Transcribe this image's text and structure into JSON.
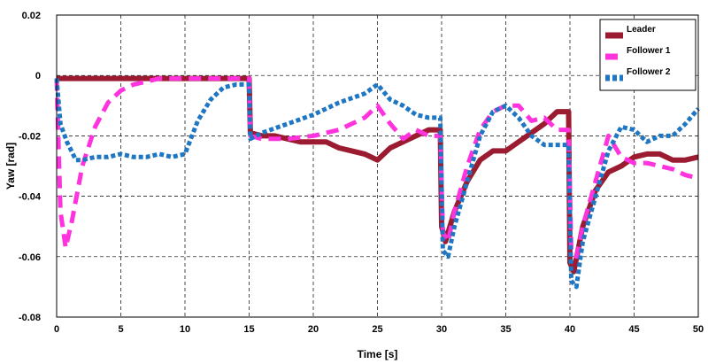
{
  "chart_data": {
    "type": "line",
    "xlabel": "Time [s]",
    "ylabel": "Yaw [rad]",
    "xlim": [
      0,
      50
    ],
    "ylim": [
      -0.08,
      0.02
    ],
    "xticks": [
      0,
      5,
      10,
      15,
      20,
      25,
      30,
      35,
      40,
      45,
      50
    ],
    "yticks": [
      0.02,
      0,
      -0.02,
      -0.04,
      -0.06,
      -0.08
    ],
    "ytick_labels": [
      "0.02",
      "0",
      "-0.02",
      "-0.04",
      "-0.06",
      "-0.08"
    ],
    "grid": true,
    "legend_position": "top-right",
    "series": [
      {
        "name": "Leader",
        "color": "#9b1b30",
        "style": "solid",
        "x": [
          0,
          2,
          5,
          10,
          15,
          15.1,
          16,
          17,
          18,
          19,
          20,
          21,
          22,
          23,
          24,
          25,
          26,
          27,
          28,
          29,
          29.9,
          30,
          30.3,
          31,
          32,
          33,
          34,
          35,
          36,
          37,
          38,
          39,
          39.9,
          40,
          40.3,
          41,
          42,
          43,
          44,
          45,
          46,
          47,
          48,
          49,
          50
        ],
        "y": [
          -0.001,
          -0.001,
          -0.001,
          -0.001,
          -0.001,
          -0.019,
          -0.02,
          -0.02,
          -0.021,
          -0.022,
          -0.022,
          -0.022,
          -0.024,
          -0.025,
          -0.026,
          -0.028,
          -0.024,
          -0.022,
          -0.02,
          -0.018,
          -0.018,
          -0.05,
          -0.055,
          -0.045,
          -0.035,
          -0.028,
          -0.025,
          -0.025,
          -0.022,
          -0.019,
          -0.016,
          -0.012,
          -0.012,
          -0.062,
          -0.065,
          -0.05,
          -0.038,
          -0.032,
          -0.03,
          -0.027,
          -0.026,
          -0.026,
          -0.028,
          -0.028,
          -0.027
        ]
      },
      {
        "name": "Follower 1",
        "color": "#ff33dd",
        "style": "dashed",
        "x": [
          0,
          0.3,
          0.7,
          1.2,
          2,
          3,
          4,
          5,
          6,
          7,
          8,
          10,
          12,
          15,
          15.1,
          16,
          18,
          20,
          22,
          24,
          25,
          26,
          27,
          28,
          29,
          29.9,
          30.1,
          30.5,
          31,
          32,
          33,
          34,
          35,
          36,
          37,
          38,
          39,
          39.9,
          40.1,
          40.5,
          41,
          42,
          43,
          44,
          45,
          46,
          47,
          48,
          49,
          50
        ],
        "y": [
          -0.001,
          -0.045,
          -0.057,
          -0.048,
          -0.03,
          -0.017,
          -0.009,
          -0.005,
          -0.003,
          -0.002,
          -0.001,
          -0.001,
          -0.001,
          -0.001,
          -0.02,
          -0.021,
          -0.021,
          -0.02,
          -0.018,
          -0.014,
          -0.01,
          -0.016,
          -0.021,
          -0.018,
          -0.02,
          -0.02,
          -0.052,
          -0.055,
          -0.045,
          -0.03,
          -0.018,
          -0.012,
          -0.01,
          -0.01,
          -0.015,
          -0.014,
          -0.018,
          -0.018,
          -0.058,
          -0.06,
          -0.05,
          -0.035,
          -0.02,
          -0.027,
          -0.029,
          -0.029,
          -0.03,
          -0.031,
          -0.033,
          -0.034
        ]
      },
      {
        "name": "Follower 2",
        "color": "#1f77c4",
        "style": "dotted",
        "x": [
          0,
          0.3,
          0.8,
          1.5,
          2,
          3,
          4,
          5,
          6,
          7,
          8,
          9,
          10,
          11,
          12,
          13,
          14,
          15,
          15.1,
          16,
          18,
          20,
          22,
          24,
          25,
          26,
          27,
          28,
          29,
          29.9,
          30.1,
          30.5,
          31,
          32,
          33,
          34,
          35,
          36,
          37,
          38,
          39,
          39.9,
          40.1,
          40.5,
          41,
          42,
          43,
          44,
          45,
          46,
          47,
          48,
          49,
          50
        ],
        "y": [
          -0.001,
          -0.016,
          -0.022,
          -0.028,
          -0.028,
          -0.027,
          -0.027,
          -0.026,
          -0.027,
          -0.027,
          -0.026,
          -0.027,
          -0.026,
          -0.015,
          -0.008,
          -0.004,
          -0.003,
          -0.003,
          -0.021,
          -0.019,
          -0.016,
          -0.013,
          -0.009,
          -0.006,
          -0.003,
          -0.008,
          -0.01,
          -0.013,
          -0.014,
          -0.014,
          -0.058,
          -0.06,
          -0.05,
          -0.035,
          -0.02,
          -0.012,
          -0.01,
          -0.014,
          -0.02,
          -0.023,
          -0.023,
          -0.023,
          -0.068,
          -0.07,
          -0.055,
          -0.04,
          -0.025,
          -0.017,
          -0.018,
          -0.022,
          -0.02,
          -0.02,
          -0.016,
          -0.011
        ]
      }
    ]
  }
}
